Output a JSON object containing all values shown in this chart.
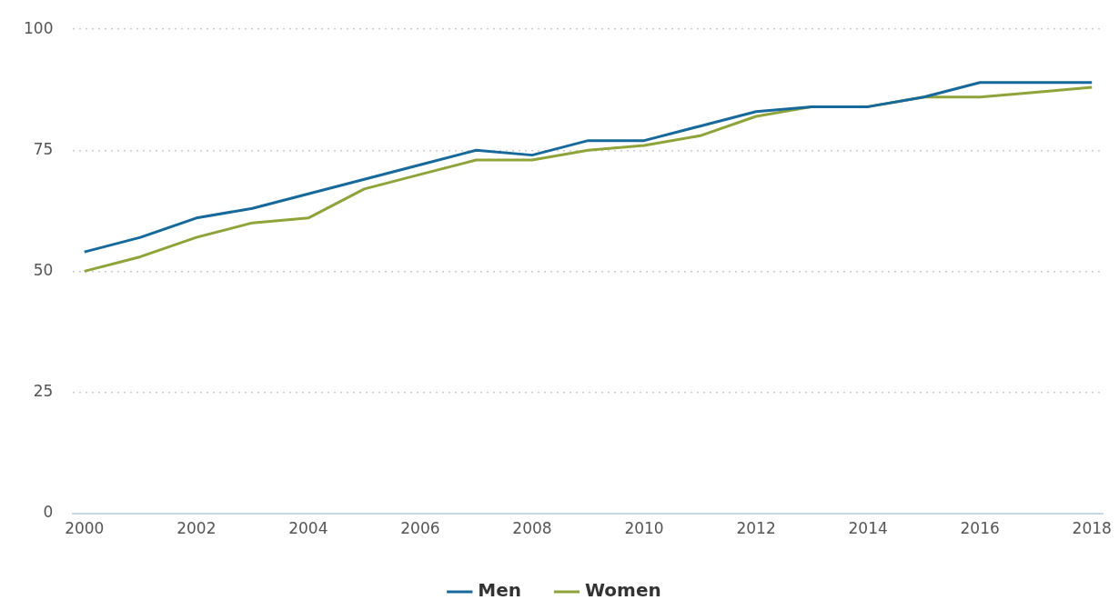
{
  "chart_data": {
    "type": "line",
    "x": [
      2000,
      2001,
      2002,
      2003,
      2004,
      2005,
      2006,
      2007,
      2008,
      2009,
      2010,
      2011,
      2012,
      2013,
      2014,
      2015,
      2016,
      2017,
      2018
    ],
    "series": [
      {
        "name": "Men",
        "color": "#16699a",
        "values": [
          54,
          57,
          61,
          63,
          66,
          69,
          72,
          75,
          74,
          77,
          77,
          80,
          83,
          84,
          84,
          86,
          89,
          89,
          89
        ]
      },
      {
        "name": "Women",
        "color": "#8fa33b",
        "values": [
          50,
          53,
          57,
          60,
          61,
          67,
          70,
          73,
          73,
          75,
          76,
          78,
          82,
          84,
          84,
          86,
          86,
          87,
          88
        ]
      }
    ],
    "xlim": [
      1999.8,
      2018.2
    ],
    "xticks": [
      2000,
      2002,
      2004,
      2006,
      2008,
      2010,
      2012,
      2014,
      2016,
      2018
    ],
    "ylim": [
      0,
      100
    ],
    "yticks": [
      0,
      25,
      50,
      75,
      100
    ],
    "grid": "y",
    "legend": "bottom",
    "marker": "none",
    "line_style": "solid"
  }
}
